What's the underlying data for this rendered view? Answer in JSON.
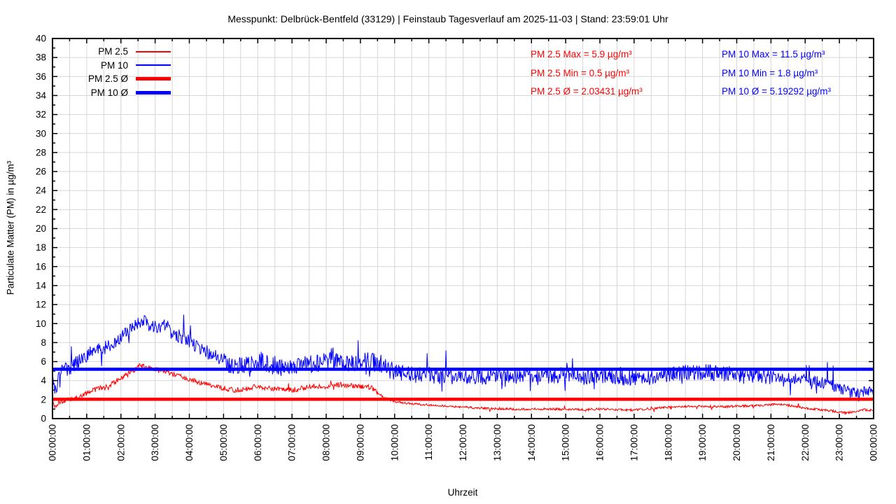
{
  "title": "Messpunkt: Delbrück-Bentfeld (33129) | Feinstaub Tagesverlauf am 2025-11-03 | Stand: 23:59:01 Uhr",
  "colors": {
    "pm25": "#ff0000",
    "pm10": "#0000ff",
    "grid": "#d6d6d6",
    "axis": "#000000"
  },
  "legend": {
    "items": [
      {
        "label": "PM 2.5",
        "color": "#ff0000",
        "style": "thin"
      },
      {
        "label": "PM 10",
        "color": "#0000ff",
        "style": "thin"
      },
      {
        "label": "PM 2.5 Ø",
        "color": "#ff0000",
        "style": "thick"
      },
      {
        "label": "PM 10 Ø",
        "color": "#0000ff",
        "style": "thick"
      }
    ]
  },
  "stats": {
    "pm25": {
      "color": "#ff0000",
      "lines": [
        "PM 2.5 Max = 5.9 µg/m³",
        "PM 2.5 Min = 0.5 µg/m³",
        "PM 2.5 Ø = 2.03431 µg/m³"
      ]
    },
    "pm10": {
      "color": "#0000ff",
      "lines": [
        "PM 10 Max = 11.5 µg/m³",
        "PM 10 Min = 1.8 µg/m³",
        "PM 10 Ø = 5.19292 µg/m³"
      ]
    }
  },
  "chart_data": {
    "type": "line",
    "title": "Messpunkt: Delbrück-Bentfeld (33129) | Feinstaub Tagesverlauf am 2025-11-03 | Stand: 23:59:01 Uhr",
    "xlabel": "Uhrzeit",
    "ylabel": "Particulate Matter (PM) in µg/m³",
    "xlim_hours": [
      0,
      24
    ],
    "ylim": [
      0,
      40
    ],
    "y_major_step": 2,
    "y_minor_step": 1,
    "x_major_step_hours": 1,
    "x_minor_step_hours": 0.5,
    "grid": {
      "vertical_every_hours": 0.5,
      "horizontal_every_units": 2
    },
    "legend_position": "top-left",
    "x_tick_labels": [
      "00:00:00",
      "01:00:00",
      "02:00:00",
      "03:00:00",
      "04:00:00",
      "05:00:00",
      "06:00:00",
      "07:00:00",
      "08:00:00",
      "09:00:00",
      "10:00:00",
      "11:00:00",
      "12:00:00",
      "13:00:00",
      "14:00:00",
      "15:00:00",
      "16:00:00",
      "17:00:00",
      "18:00:00",
      "19:00:00",
      "20:00:00",
      "21:00:00",
      "22:00:00",
      "23:00:00",
      "00:00:00"
    ],
    "avg_lines": [
      {
        "name": "PM 2.5 Ø",
        "value": 2.03431,
        "color": "#ff0000"
      },
      {
        "name": "PM 10 Ø",
        "value": 5.19292,
        "color": "#0000ff"
      }
    ],
    "series": [
      {
        "name": "PM 2.5",
        "color": "#ff0000",
        "max": 5.9,
        "min": 0.5,
        "avg": 2.03431,
        "sample_minutes": 1,
        "seed": 1337,
        "clamp_min": 0.5,
        "noise_segments": [
          {
            "to": 9.5,
            "amp": 0.27
          },
          {
            "to": 24,
            "amp": 0.12
          }
        ],
        "spike_up_prob": 0.008,
        "spike_up": 0.5,
        "spike_down_prob": 0.008,
        "spike_down": 0.4,
        "anchors": [
          [
            0,
            1.9
          ],
          [
            0.07,
            1.15
          ],
          [
            0.2,
            1.8
          ],
          [
            0.5,
            2.0
          ],
          [
            0.8,
            2.3
          ],
          [
            1,
            2.7
          ],
          [
            1.3,
            3.1
          ],
          [
            1.6,
            3.4
          ],
          [
            2,
            4.2
          ],
          [
            2.3,
            4.9
          ],
          [
            2.55,
            5.55
          ],
          [
            2.75,
            5.4
          ],
          [
            3,
            5.2
          ],
          [
            3.3,
            5.0
          ],
          [
            3.6,
            4.6
          ],
          [
            4,
            4.1
          ],
          [
            4.4,
            3.7
          ],
          [
            4.8,
            3.3
          ],
          [
            5,
            3.2
          ],
          [
            5.3,
            3.0
          ],
          [
            5.6,
            3.1
          ],
          [
            6,
            3.4
          ],
          [
            6.3,
            3.2
          ],
          [
            6.6,
            3.1
          ],
          [
            7,
            3.0
          ],
          [
            7.3,
            3.2
          ],
          [
            7.6,
            3.4
          ],
          [
            8,
            3.4
          ],
          [
            8.3,
            3.6
          ],
          [
            8.6,
            3.5
          ],
          [
            9,
            3.4
          ],
          [
            9.3,
            3.3
          ],
          [
            9.5,
            2.7
          ],
          [
            9.7,
            2.2
          ],
          [
            10,
            1.8
          ],
          [
            10.4,
            1.6
          ],
          [
            10.8,
            1.5
          ],
          [
            11.2,
            1.4
          ],
          [
            11.6,
            1.3
          ],
          [
            12,
            1.2
          ],
          [
            12.5,
            1.1
          ],
          [
            13,
            1.05
          ],
          [
            13.5,
            1.0
          ],
          [
            14,
            1.0
          ],
          [
            14.5,
            1.0
          ],
          [
            15,
            1.0
          ],
          [
            15.5,
            0.95
          ],
          [
            16,
            1.0
          ],
          [
            16.5,
            0.95
          ],
          [
            17,
            0.9
          ],
          [
            17.5,
            1.05
          ],
          [
            18,
            1.2
          ],
          [
            18.5,
            1.3
          ],
          [
            19,
            1.3
          ],
          [
            19.5,
            1.25
          ],
          [
            20,
            1.3
          ],
          [
            20.8,
            1.4
          ],
          [
            21.2,
            1.55
          ],
          [
            21.6,
            1.35
          ],
          [
            22,
            1.1
          ],
          [
            22.4,
            0.95
          ],
          [
            22.8,
            0.8
          ],
          [
            23.2,
            0.6
          ],
          [
            23.5,
            0.75
          ],
          [
            23.7,
            0.95
          ],
          [
            24,
            0.85
          ]
        ]
      },
      {
        "name": "PM 10",
        "color": "#0000ff",
        "max": 11.5,
        "min": 1.8,
        "avg": 5.19292,
        "sample_minutes": 1,
        "seed": 4242,
        "clamp_min": 1.8,
        "noise_segments": [
          {
            "to": 5,
            "amp": 0.75
          },
          {
            "to": 10,
            "amp": 0.95
          },
          {
            "to": 21,
            "amp": 0.85
          },
          {
            "to": 24,
            "amp": 0.6
          }
        ],
        "spike_up_prob": 0.02,
        "spike_up": 2.2,
        "spike_down_prob": 0.012,
        "spike_down": 1.6,
        "anchors": [
          [
            0,
            4.6
          ],
          [
            0.05,
            3.6
          ],
          [
            0.1,
            2.9
          ],
          [
            0.2,
            4.6
          ],
          [
            0.35,
            5.1
          ],
          [
            0.5,
            5.3
          ],
          [
            0.7,
            5.9
          ],
          [
            0.9,
            6.5
          ],
          [
            1.1,
            6.9
          ],
          [
            1.3,
            7.3
          ],
          [
            1.5,
            7.4
          ],
          [
            1.7,
            7.9
          ],
          [
            1.9,
            8.4
          ],
          [
            2.1,
            8.9
          ],
          [
            2.3,
            9.5
          ],
          [
            2.5,
            10.2
          ],
          [
            2.7,
            10.1
          ],
          [
            2.9,
            9.7
          ],
          [
            3.1,
            9.4
          ],
          [
            3.3,
            9.8
          ],
          [
            3.5,
            9.0
          ],
          [
            3.7,
            8.7
          ],
          [
            3.9,
            8.5
          ],
          [
            4.1,
            7.9
          ],
          [
            4.3,
            7.5
          ],
          [
            4.5,
            7.0
          ],
          [
            4.7,
            6.7
          ],
          [
            4.9,
            6.2
          ],
          [
            5.1,
            5.7
          ],
          [
            5.3,
            5.5
          ],
          [
            5.5,
            5.5
          ],
          [
            5.7,
            5.6
          ],
          [
            5.9,
            5.8
          ],
          [
            6.1,
            6.1
          ],
          [
            6.3,
            5.7
          ],
          [
            6.5,
            5.5
          ],
          [
            6.7,
            5.4
          ],
          [
            6.9,
            5.5
          ],
          [
            7.1,
            5.6
          ],
          [
            7.4,
            5.8
          ],
          [
            7.7,
            5.7
          ],
          [
            8,
            6.0
          ],
          [
            8.3,
            6.1
          ],
          [
            8.6,
            5.8
          ],
          [
            8.9,
            6.0
          ],
          [
            9.2,
            6.1
          ],
          [
            9.5,
            5.8
          ],
          [
            9.7,
            5.4
          ],
          [
            10,
            4.9
          ],
          [
            10.3,
            4.7
          ],
          [
            10.7,
            4.6
          ],
          [
            11,
            4.6
          ],
          [
            11.5,
            4.4
          ],
          [
            12,
            4.5
          ],
          [
            12.5,
            4.4
          ],
          [
            13,
            4.6
          ],
          [
            13.5,
            4.5
          ],
          [
            14,
            4.6
          ],
          [
            14.5,
            4.5
          ],
          [
            15,
            4.6
          ],
          [
            15.5,
            4.4
          ],
          [
            16,
            4.5
          ],
          [
            16.5,
            4.4
          ],
          [
            17,
            4.3
          ],
          [
            17.5,
            4.4
          ],
          [
            18,
            4.6
          ],
          [
            18.5,
            4.8
          ],
          [
            19,
            4.9
          ],
          [
            19.5,
            4.8
          ],
          [
            20,
            4.6
          ],
          [
            20.5,
            4.5
          ],
          [
            21,
            4.4
          ],
          [
            21.5,
            4.3
          ],
          [
            22,
            4.1
          ],
          [
            22.3,
            3.9
          ],
          [
            22.6,
            3.7
          ],
          [
            22.9,
            3.3
          ],
          [
            23.2,
            2.9
          ],
          [
            23.4,
            2.7
          ],
          [
            23.6,
            2.7
          ],
          [
            23.8,
            2.9
          ],
          [
            24,
            3.1
          ]
        ]
      }
    ]
  }
}
